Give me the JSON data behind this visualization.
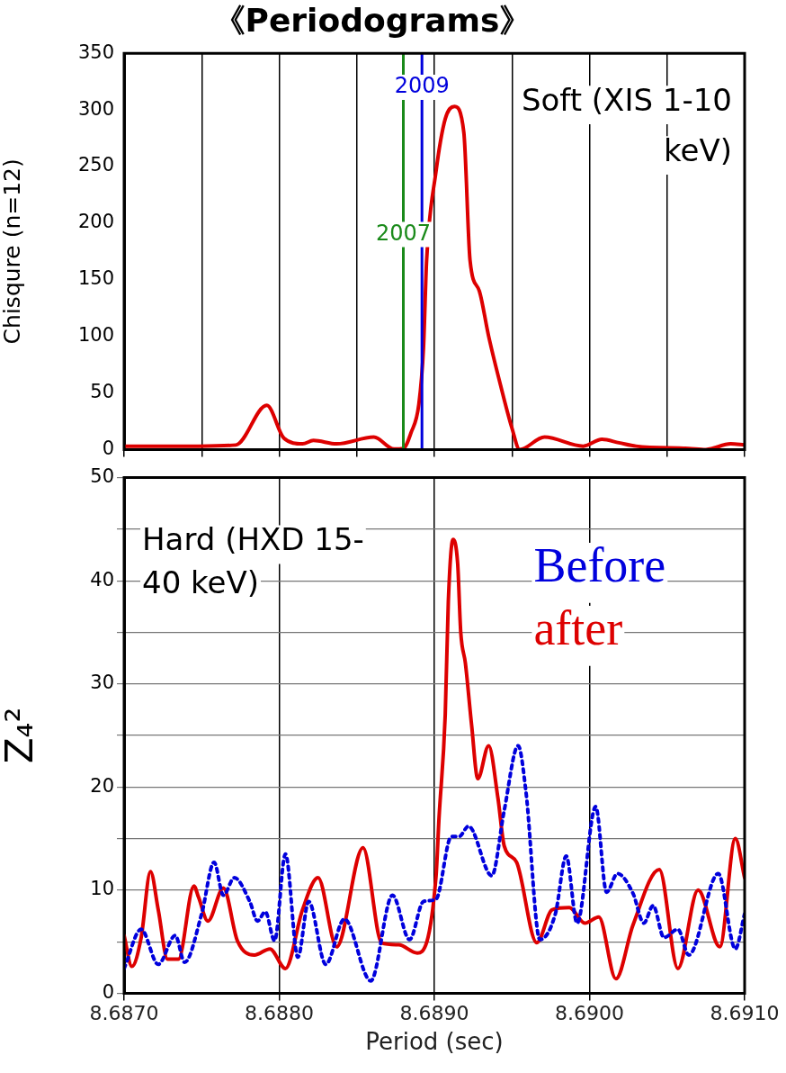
{
  "chart_data": [
    {
      "type": "line",
      "title": "《Periodograms》",
      "ylabel": "Chisqure (n=12)",
      "xlim": [
        8.687,
        8.691
      ],
      "xticks": [
        8.687,
        8.6875,
        8.688,
        8.6885,
        8.689,
        8.6895,
        8.69,
        8.6905,
        8.691
      ],
      "ylim": [
        0,
        350
      ],
      "yticks": [
        0,
        50,
        100,
        150,
        200,
        250,
        300,
        350
      ],
      "grid": "x",
      "tick_labels": "y",
      "line_style": "solid",
      "annotations": [
        "Soft (XIS 1-10 keV)",
        {
          "text": "2007",
          "x": 8.6888,
          "y": 190
        },
        {
          "text": "2009",
          "x": 8.68892,
          "y": 320
        }
      ],
      "ref_lines": [
        {
          "axis": "x",
          "value": 8.6888,
          "color": "#1a8a1a"
        },
        {
          "axis": "x",
          "value": 8.68892,
          "color": "#0000dd"
        }
      ],
      "series": [
        {
          "color": "#dd0000",
          "x": [
            8.687,
            8.68748,
            8.68772,
            8.68792,
            8.68803,
            8.68815,
            8.68822,
            8.68837,
            8.68861,
            8.68874,
            8.6888,
            8.68885,
            8.6889,
            8.68893,
            8.68895,
            8.68901,
            8.68907,
            8.68913,
            8.68919,
            8.68923,
            8.68929,
            8.68935,
            8.68943,
            8.6895,
            8.68955,
            8.68971,
            8.68996,
            8.69008,
            8.69019,
            8.6903,
            8.69064,
            8.69075,
            8.69091,
            8.691
          ],
          "values": [
            3,
            3,
            4,
            39,
            10,
            5,
            8,
            5,
            11,
            0.5,
            1,
            15,
            40,
            90,
            167,
            245,
            292,
            303,
            280,
            167,
            140,
            100,
            55,
            19,
            0,
            11,
            3,
            9,
            6,
            3,
            1,
            0,
            5,
            4
          ]
        }
      ]
    },
    {
      "type": "line",
      "ylabel": "Z₄²",
      "xlabel": "Period (sec)",
      "xlim": [
        8.687,
        8.691
      ],
      "xticks": [
        {
          "value": 8.687,
          "label": "8.6870"
        },
        {
          "value": 8.688,
          "label": "8.6880"
        },
        {
          "value": 8.689,
          "label": "8.6890"
        },
        {
          "value": 8.69,
          "label": "8.6900"
        },
        {
          "value": 8.691,
          "label": "8.6910"
        }
      ],
      "ylim": [
        0,
        50
      ],
      "yticks": [
        0,
        {
          "value": 5,
          "label": null
        },
        10,
        {
          "value": 15,
          "label": null
        },
        20,
        {
          "value": 25,
          "label": null
        },
        30,
        {
          "value": 35,
          "label": null
        },
        40,
        {
          "value": 45,
          "label": null
        },
        50
      ],
      "grid": true,
      "annotations": [
        "Hard (HXD 15-40 keV)"
      ],
      "series": [
        {
          "name": "Before",
          "color": "#0000dd",
          "line_style": "dotted",
          "x": [
            8.687,
            8.68711,
            8.68722,
            8.68733,
            8.68739,
            8.6875,
            8.68758,
            8.68764,
            8.68771,
            8.68781,
            8.68786,
            8.68791,
            8.68797,
            8.68804,
            8.68812,
            8.68819,
            8.6883,
            8.68842,
            8.68859,
            8.68873,
            8.68884,
            8.68893,
            8.68901,
            8.68911,
            8.68916,
            8.68922,
            8.68937,
            8.68945,
            8.68954,
            8.68959,
            8.68968,
            8.68978,
            8.68985,
            8.68992,
            8.69004,
            8.69011,
            8.69018,
            8.69028,
            8.69035,
            8.69041,
            8.69048,
            8.69057,
            8.69064,
            8.69083,
            8.69094,
            8.691
          ],
          "values": [
            2.4,
            6.2,
            2.8,
            5.6,
            3,
            7.7,
            12.7,
            9.5,
            11.2,
            8.9,
            7,
            7.9,
            5.1,
            13.5,
            3.5,
            8.9,
            2.8,
            7.2,
            1.2,
            9.5,
            5.2,
            8.9,
            9.1,
            15.2,
            15.2,
            16.2,
            11.4,
            17.7,
            24,
            19.6,
            5.2,
            7.7,
            13.3,
            6.8,
            18.1,
            9.8,
            11.6,
            9.7,
            6.8,
            8.5,
            5.4,
            6.2,
            3.7,
            11.6,
            4.3,
            7.7
          ]
        },
        {
          "name": "after",
          "color": "#dd0000",
          "line_style": "solid",
          "x": [
            8.687,
            8.68705,
            8.68711,
            8.68717,
            8.68722,
            8.68728,
            8.68735,
            8.68745,
            8.68748,
            8.68754,
            8.68764,
            8.68773,
            8.68784,
            8.68794,
            8.68804,
            8.68815,
            8.68825,
            8.68837,
            8.68854,
            8.68866,
            8.68877,
            8.68889,
            8.68901,
            8.68903,
            8.68907,
            8.68909,
            8.68912,
            8.68915,
            8.68917,
            8.6892,
            8.68924,
            8.68928,
            8.68935,
            8.68941,
            8.68945,
            8.68953,
            8.68966,
            8.68976,
            8.68987,
            8.68997,
            8.69006,
            8.69017,
            8.69028,
            8.69045,
            8.69057,
            8.6907,
            8.69084,
            8.69094,
            8.691
          ],
          "values": [
            5.6,
            2.6,
            5.4,
            11.8,
            8.1,
            3.3,
            3.3,
            10.4,
            9.3,
            7,
            10.2,
            5.1,
            3.7,
            4.3,
            2.4,
            8.1,
            11.2,
            4.5,
            14.1,
            4.9,
            4.7,
            3.9,
            11.2,
            17,
            27,
            38,
            44,
            41.7,
            35,
            32,
            26,
            20.8,
            24,
            18.9,
            14.3,
            12.7,
            4.9,
            8.1,
            8.3,
            6.8,
            7.4,
            1.4,
            6.6,
            12,
            2.4,
            10,
            4.5,
            15,
            11.2
          ]
        }
      ]
    }
  ]
}
